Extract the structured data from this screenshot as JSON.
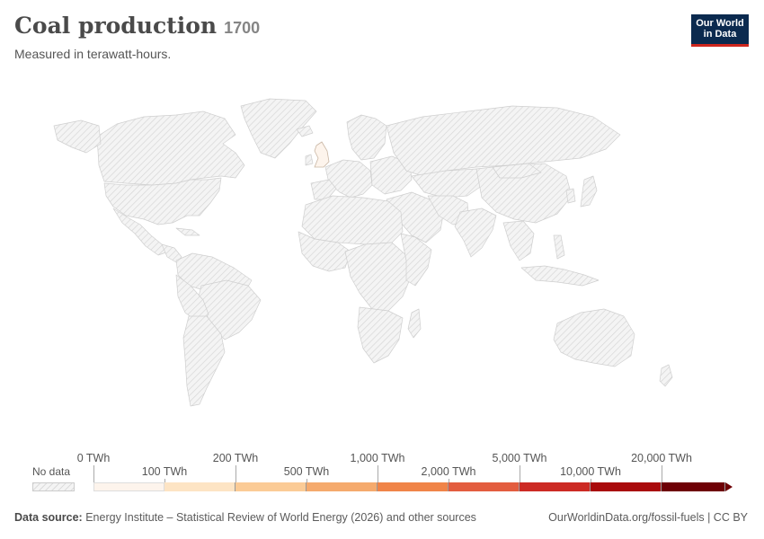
{
  "header": {
    "title": "Coal production",
    "year": "1700",
    "subtitle": "Measured in terawatt-hours."
  },
  "logo": {
    "line1": "Our World",
    "line2": "in Data"
  },
  "legend": {
    "no_data_label": "No data",
    "top_ticks": [
      "0 TWh",
      "200 TWh",
      "1,000 TWh",
      "5,000 TWh",
      "20,000 TWh"
    ],
    "bottom_ticks": [
      "100 TWh",
      "500 TWh",
      "2,000 TWh",
      "10,000 TWh"
    ],
    "bin_colors": [
      "#fdf4ec",
      "#fde4c4",
      "#fbcb96",
      "#f5aa6d",
      "#f08448",
      "#e35d3f",
      "#cc2a24",
      "#a90a0c",
      "#6e0005"
    ]
  },
  "map": {
    "highlighted_region": "United Kingdom",
    "highlight_color": "#fdf4ec",
    "no_data_pattern": "diagonal-hatch"
  },
  "footer": {
    "source_label": "Data source:",
    "source_text": "Energy Institute – Statistical Review of World Energy (2026) and other sources",
    "url_text": "OurWorldinData.org/fossil-fuels | CC BY"
  }
}
